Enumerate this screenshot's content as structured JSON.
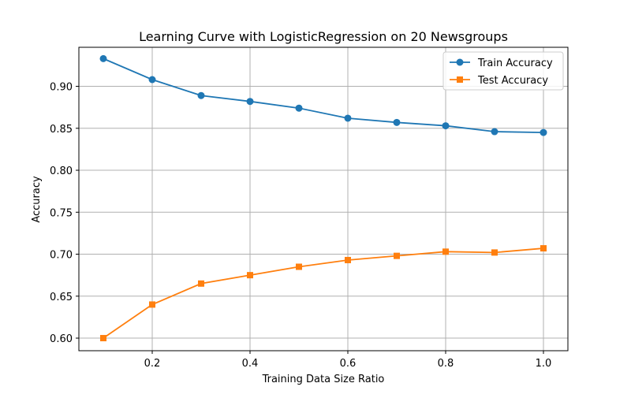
{
  "chart_data": {
    "type": "line",
    "title": "Learning Curve with LogisticRegression on 20 Newsgroups",
    "xlabel": "Training Data Size Ratio",
    "ylabel": "Accuracy",
    "xlim": [
      0.05,
      1.05
    ],
    "ylim": [
      0.585,
      0.9465
    ],
    "xticks": [
      0.2,
      0.4,
      0.6,
      0.8,
      1.0
    ],
    "xtick_labels": [
      "0.2",
      "0.4",
      "0.6",
      "0.8",
      "1.0"
    ],
    "yticks": [
      0.6,
      0.65,
      0.7,
      0.75,
      0.8,
      0.85,
      0.9
    ],
    "ytick_labels": [
      "0.60",
      "0.65",
      "0.70",
      "0.75",
      "0.80",
      "0.85",
      "0.90"
    ],
    "grid": true,
    "legend_position": "upper right",
    "x": [
      0.1,
      0.2,
      0.3,
      0.4,
      0.5,
      0.6,
      0.7,
      0.8,
      0.9,
      1.0
    ],
    "series": [
      {
        "name": "Train Accuracy",
        "marker": "circle",
        "color": "#1f77b4",
        "values": [
          0.933,
          0.908,
          0.889,
          0.882,
          0.874,
          0.862,
          0.857,
          0.853,
          0.846,
          0.845
        ]
      },
      {
        "name": "Test Accuracy",
        "marker": "square",
        "color": "#ff7f0e",
        "values": [
          0.6,
          0.64,
          0.665,
          0.675,
          0.685,
          0.693,
          0.698,
          0.703,
          0.702,
          0.707
        ]
      }
    ]
  }
}
